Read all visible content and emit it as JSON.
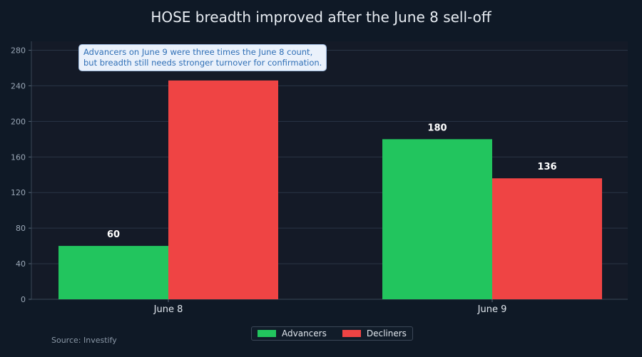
{
  "chart_data": {
    "type": "bar",
    "title": "HOSE breadth improved after the June 8 sell-off",
    "categories": [
      "June 8",
      "June 9"
    ],
    "series": [
      {
        "name": "Advancers",
        "values": [
          60,
          180
        ],
        "color": "#22c55e"
      },
      {
        "name": "Decliners",
        "values": [
          246,
          136
        ],
        "color": "#ef4444"
      }
    ],
    "data_labels": [
      {
        "series": "Advancers",
        "category": "June 8",
        "label": "60"
      },
      {
        "series": "Advancers",
        "category": "June 9",
        "label": "180"
      },
      {
        "series": "Decliners",
        "category": "June 9",
        "label": "136"
      }
    ],
    "ylim": [
      0,
      290
    ],
    "yticks": [
      0,
      40,
      80,
      120,
      160,
      200,
      240,
      280
    ],
    "xlabel": "",
    "ylabel": "",
    "grid": true,
    "legend_position": "bottom-center",
    "annotation": "Advancers on June 9 were three times the June 8 count,\nbut breadth still needs stronger turnover for confirmation.",
    "source": "Source: Investify"
  }
}
